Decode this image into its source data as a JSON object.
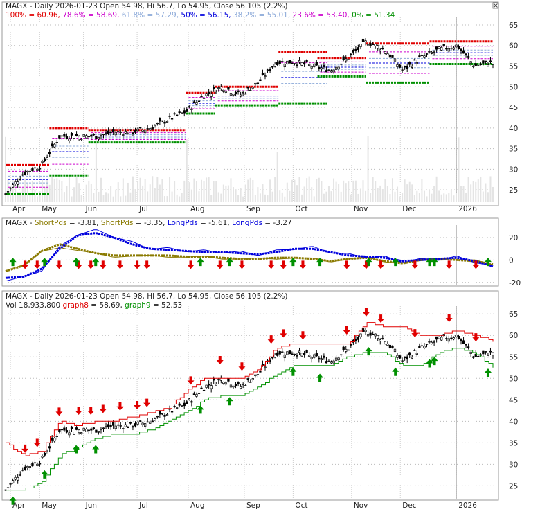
{
  "colors": {
    "red": "#e00000",
    "green": "#009000",
    "blue": "#0000dd",
    "olive": "#8a7a00",
    "magenta": "#cc00cc",
    "lightblue": "#8aa8d8",
    "gray": "#888888",
    "panel_bg": "#ffffff",
    "grid": "#bbbbbb"
  },
  "corner_icon": "close-icon",
  "panel1": {
    "title": "MAGX - Daily 2026-01-23 Open 54.98, Hi 56.7, Lo 54.95, Close 56.105 (2.2%)",
    "fib_labels": [
      {
        "label": "100% = 60.96,",
        "color": "#e00000"
      },
      {
        "label": "78.6% = 58.69,",
        "color": "#cc00cc"
      },
      {
        "label": "61.8% = 57.29,",
        "color": "#8aa8d8"
      },
      {
        "label": "50% = 56.15,",
        "color": "#0000dd"
      },
      {
        "label": "38.2% = 55.01,",
        "color": "#8aa8d8"
      },
      {
        "label": "23.6% = 53.40,",
        "color": "#cc00cc"
      },
      {
        "label": "0% = 51.34",
        "color": "#009000"
      }
    ],
    "yticks": [
      "65",
      "60",
      "55",
      "50",
      "45",
      "40",
      "35",
      "30",
      "25"
    ],
    "xticks": [
      "Apr",
      "May",
      "Jun",
      "Jul",
      "Aug",
      "Sep",
      "Oct",
      "Nov",
      "Dec",
      "2026"
    ]
  },
  "panel2": {
    "title_parts": [
      {
        "text": "MAGX - ",
        "color": "#222222"
      },
      {
        "text": "ShortPds",
        "color": "#8a7a00"
      },
      {
        "text": " = -3.81, ",
        "color": "#222222"
      },
      {
        "text": "ShortPds",
        "color": "#8a7a00"
      },
      {
        "text": " = -3.35, ",
        "color": "#222222"
      },
      {
        "text": "LongPds",
        "color": "#0000dd"
      },
      {
        "text": " = -5.61, ",
        "color": "#222222"
      },
      {
        "text": "LongPds",
        "color": "#0000dd"
      },
      {
        "text": " = -3.27",
        "color": "#222222"
      }
    ],
    "yticks": [
      "20",
      "0",
      "-20"
    ]
  },
  "panel3": {
    "title": "MAGX - Daily 2026-01-23 Open 54.98, Hi 56.7, Lo 54.95, Close 56.105 (2.2%)",
    "legend_parts": [
      {
        "text": "Vol 18,933,800 ",
        "color": "#222222"
      },
      {
        "text": "graph8",
        "color": "#e00000"
      },
      {
        "text": " = 58.69, ",
        "color": "#222222"
      },
      {
        "text": "graph9",
        "color": "#009000"
      },
      {
        "text": " = 52.53",
        "color": "#222222"
      }
    ],
    "yticks": [
      "65",
      "60",
      "55",
      "50",
      "45",
      "40",
      "35",
      "30",
      "25"
    ],
    "xticks": [
      "Apr",
      "May",
      "Jun",
      "Jul",
      "Aug",
      "Sep",
      "Oct",
      "Nov",
      "Dec",
      "2026"
    ]
  },
  "chart_data": [
    {
      "type": "line",
      "title": "MAGX - Daily 2026-01-23 Open 54.98, Hi 56.7, Lo 54.95, Close 56.105 (2.2%)",
      "ylim": [
        22,
        66
      ],
      "x": [
        "Apr",
        "Apr",
        "May",
        "May",
        "May",
        "Jun",
        "Jun",
        "Jun",
        "Jul",
        "Jul",
        "Aug",
        "Aug",
        "Aug",
        "Sep",
        "Sep",
        "Sep",
        "Oct",
        "Oct",
        "Oct",
        "Oct",
        "Nov",
        "Nov",
        "Nov",
        "Dec",
        "Dec",
        "Dec",
        "2026",
        "2026"
      ],
      "series": [
        {
          "name": "Close",
          "values": [
            24,
            29,
            31,
            38,
            38,
            38,
            39,
            39,
            40,
            42,
            44,
            48,
            50,
            48,
            51,
            56,
            56,
            55,
            54,
            57,
            61,
            59,
            54,
            57,
            59,
            60,
            55,
            56.1
          ]
        }
      ],
      "fibonacci": {
        "100%": 60.96,
        "78.6%": 58.69,
        "61.8%": 57.29,
        "50%": 56.15,
        "38.2%": 55.01,
        "23.6%": 53.4,
        "0%": 51.34
      },
      "grid": true
    },
    {
      "type": "line",
      "ylim": [
        -22,
        28
      ],
      "x": [
        "Apr",
        "Apr",
        "May",
        "May",
        "May",
        "Jun",
        "Jun",
        "Jun",
        "Jul",
        "Jul",
        "Aug",
        "Aug",
        "Aug",
        "Sep",
        "Sep",
        "Sep",
        "Oct",
        "Oct",
        "Oct",
        "Oct",
        "Nov",
        "Nov",
        "Nov",
        "Dec",
        "Dec",
        "Dec",
        "2026",
        "2026"
      ],
      "series": [
        {
          "name": "ShortPds",
          "values": [
            -10,
            -5,
            8,
            14,
            10,
            6,
            4,
            4,
            4,
            4,
            3,
            3,
            2,
            1,
            1,
            2,
            2,
            1,
            -1,
            1,
            2,
            -1,
            -3,
            0,
            1,
            0,
            -1,
            -3.81
          ]
        },
        {
          "name": "LongPds",
          "values": [
            -16,
            -15,
            -8,
            10,
            22,
            24,
            20,
            14,
            10,
            9,
            8,
            7,
            7,
            6,
            5,
            7,
            10,
            10,
            7,
            4,
            3,
            2,
            -1,
            0,
            1,
            2,
            -1,
            -5.61
          ]
        }
      ],
      "grid": true
    },
    {
      "type": "line",
      "title": "MAGX - Daily 2026-01-23 Open 54.98, Hi 56.7, Lo 54.95, Close 56.105 (2.2%)",
      "ylim": [
        22,
        66
      ],
      "x": [
        "Apr",
        "Apr",
        "May",
        "May",
        "May",
        "Jun",
        "Jun",
        "Jun",
        "Jul",
        "Jul",
        "Aug",
        "Aug",
        "Aug",
        "Sep",
        "Sep",
        "Sep",
        "Oct",
        "Oct",
        "Oct",
        "Oct",
        "Nov",
        "Nov",
        "Nov",
        "Dec",
        "Dec",
        "Dec",
        "2026",
        "2026"
      ],
      "series": [
        {
          "name": "Close",
          "values": [
            24,
            29,
            31,
            38,
            38,
            38,
            39,
            39,
            40,
            42,
            44,
            48,
            50,
            48,
            51,
            56,
            56,
            55,
            54,
            57,
            61,
            59,
            54,
            57,
            59,
            60,
            55,
            56.1
          ]
        },
        {
          "name": "graph8",
          "values": [
            35,
            32,
            33,
            40,
            39,
            40,
            40,
            41,
            42,
            43,
            47,
            50,
            50,
            50,
            52,
            57,
            58,
            58,
            58,
            58,
            63,
            62,
            62,
            60,
            60,
            61,
            60,
            58.69
          ]
        },
        {
          "name": "graph9",
          "values": [
            24,
            24,
            26,
            32,
            34,
            36,
            37,
            37,
            38,
            40,
            42,
            45,
            46,
            46,
            48,
            51,
            53,
            53,
            53,
            55,
            56,
            56,
            53,
            53,
            56,
            57,
            56,
            52.53
          ]
        }
      ],
      "grid": true
    }
  ]
}
